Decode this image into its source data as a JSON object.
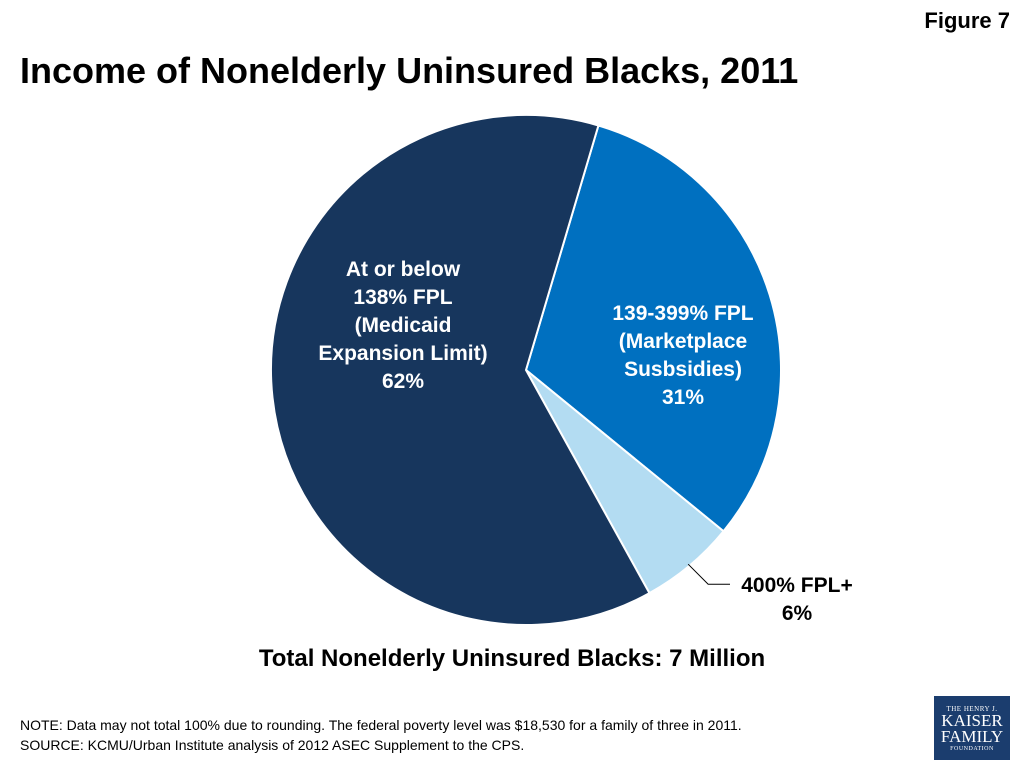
{
  "figure_label": "Figure 7",
  "title": "Income of Nonelderly Uninsured Blacks, 2011",
  "total_label": "Total Nonelderly Uninsured Blacks: 7 Million",
  "notes": {
    "note": "NOTE:  Data may not total 100% due to rounding. The federal poverty level was $18,530 for a family of three  in 2011.",
    "source": "SOURCE: KCMU/Urban Institute analysis of 2012 ASEC Supplement to the CPS."
  },
  "logo": {
    "line1": "THE HENRY J.",
    "line2": "KAISER",
    "line3": "FAMILY",
    "line4": "FOUNDATION"
  },
  "chart_data": {
    "type": "pie",
    "title": "Income of Nonelderly Uninsured Blacks, 2011",
    "slices": [
      {
        "label_lines": [
          "At or below",
          "138% FPL",
          "(Medicaid",
          "Expansion Limit)",
          "62%"
        ],
        "value": 62,
        "color": "#17365d",
        "text_color": "#ffffff"
      },
      {
        "label_lines": [
          "139-399% FPL",
          "(Marketplace",
          "Susbsidies)",
          "31%"
        ],
        "value": 31,
        "color": "#0070c0",
        "text_color": "#ffffff"
      },
      {
        "label_lines": [
          "400% FPL+",
          "6%"
        ],
        "value": 6,
        "color": "#b3dcf2",
        "text_color": "#000000"
      }
    ],
    "legend": "none"
  }
}
